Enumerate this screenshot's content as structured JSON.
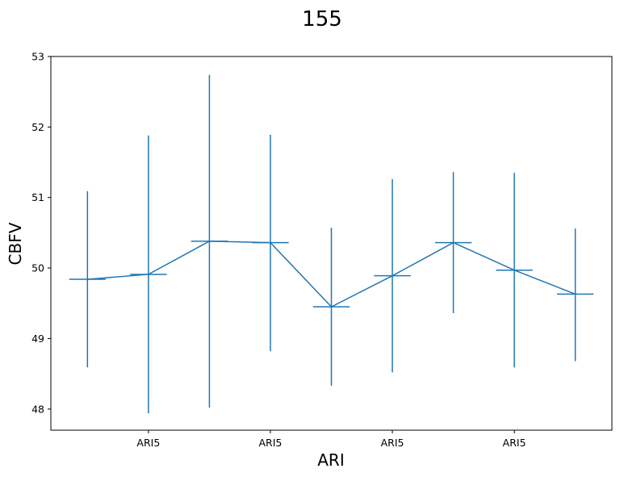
{
  "chart_data": {
    "type": "line",
    "title": "155",
    "xlabel": "ARI",
    "ylabel": "CBFV",
    "x": [
      1,
      2,
      3,
      4,
      5,
      6,
      7,
      8,
      9
    ],
    "x_tick_positions": [
      2,
      4,
      6,
      8
    ],
    "x_tick_labels": [
      "ARI5",
      "ARI5",
      "ARI5",
      "ARI5"
    ],
    "y_ticks": [
      48,
      49,
      50,
      51,
      52,
      53
    ],
    "xlim": [
      0.4,
      9.6
    ],
    "ylim": [
      47.7,
      53.0
    ],
    "series": [
      {
        "values": [
          49.84,
          49.91,
          50.38,
          50.36,
          49.45,
          49.89,
          50.36,
          49.97,
          49.63
        ],
        "y_error_low": [
          48.59,
          47.94,
          48.02,
          48.82,
          48.33,
          48.52,
          49.36,
          48.59,
          48.68
        ],
        "y_error_high": [
          51.09,
          51.88,
          52.74,
          51.89,
          50.57,
          51.26,
          51.36,
          51.35,
          50.56
        ],
        "x_error": 0.3,
        "color": "#1f77b4"
      }
    ],
    "grid": false,
    "legend": false
  }
}
